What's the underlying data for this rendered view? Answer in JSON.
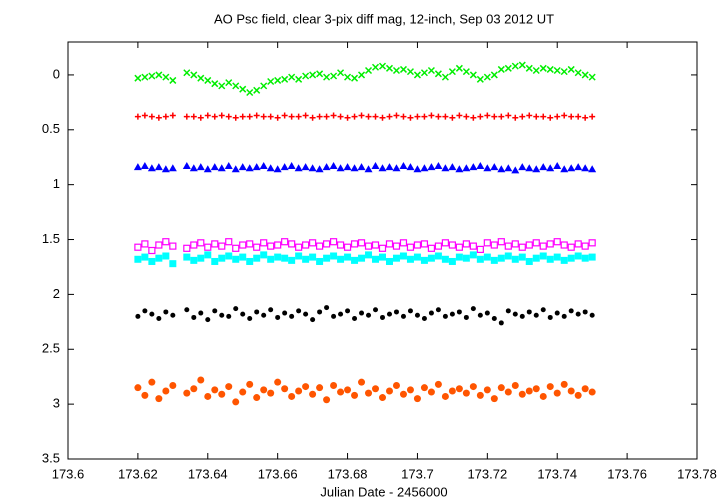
{
  "chart_data": {
    "type": "scatter",
    "title": "AO Psc field, clear 3-pix diff mag, 12-inch, Sep 03 2012 UT",
    "x_label": "Julian Date - 2456000",
    "xlim": [
      173.6,
      173.78
    ],
    "xticks": [
      173.6,
      173.62,
      173.64,
      173.66,
      173.68,
      173.7,
      173.72,
      173.74,
      173.76,
      173.78
    ],
    "ylim": [
      3.5,
      -0.3
    ],
    "yticks": [
      0,
      0.5,
      1,
      1.5,
      2,
      2.5,
      3,
      3.5
    ],
    "grid": false,
    "x": [
      173.62,
      173.622,
      173.624,
      173.626,
      173.628,
      173.63,
      173.634,
      173.636,
      173.638,
      173.64,
      173.642,
      173.644,
      173.646,
      173.648,
      173.65,
      173.652,
      173.654,
      173.656,
      173.658,
      173.66,
      173.662,
      173.664,
      173.666,
      173.668,
      173.67,
      173.672,
      173.674,
      173.676,
      173.678,
      173.68,
      173.682,
      173.684,
      173.686,
      173.688,
      173.69,
      173.692,
      173.694,
      173.696,
      173.698,
      173.7,
      173.702,
      173.704,
      173.706,
      173.708,
      173.71,
      173.712,
      173.714,
      173.716,
      173.718,
      173.72,
      173.722,
      173.724,
      173.726,
      173.728,
      173.73,
      173.732,
      173.734,
      173.736,
      173.738,
      173.74,
      173.742,
      173.744,
      173.746,
      173.748,
      173.75
    ],
    "series": [
      {
        "color": "#00ee00",
        "marker": "x",
        "values": [
          0.03,
          0.02,
          0.01,
          0.0,
          0.02,
          0.05,
          -0.02,
          0.0,
          0.03,
          0.05,
          0.08,
          0.1,
          0.07,
          0.1,
          0.13,
          0.16,
          0.14,
          0.1,
          0.06,
          0.05,
          0.04,
          0.02,
          0.04,
          0.01,
          0.0,
          -0.01,
          0.02,
          0.01,
          -0.02,
          0.02,
          0.03,
          0.0,
          -0.04,
          -0.07,
          -0.08,
          -0.06,
          -0.04,
          -0.05,
          -0.03,
          0.0,
          -0.02,
          -0.04,
          -0.01,
          0.02,
          -0.03,
          -0.06,
          -0.03,
          0.0,
          0.04,
          0.02,
          0.0,
          -0.05,
          -0.06,
          -0.08,
          -0.09,
          -0.06,
          -0.04,
          -0.06,
          -0.05,
          -0.04,
          -0.03,
          -0.05,
          -0.02,
          0.0,
          0.02
        ]
      },
      {
        "color": "#ff0000",
        "marker": "plus",
        "values": [
          0.38,
          0.37,
          0.38,
          0.39,
          0.38,
          0.37,
          0.38,
          0.38,
          0.39,
          0.37,
          0.38,
          0.37,
          0.38,
          0.39,
          0.38,
          0.38,
          0.37,
          0.38,
          0.38,
          0.39,
          0.37,
          0.38,
          0.38,
          0.37,
          0.39,
          0.38,
          0.38,
          0.37,
          0.38,
          0.39,
          0.38,
          0.37,
          0.38,
          0.38,
          0.39,
          0.38,
          0.37,
          0.38,
          0.39,
          0.38,
          0.38,
          0.37,
          0.38,
          0.38,
          0.39,
          0.37,
          0.38,
          0.39,
          0.38,
          0.37,
          0.38,
          0.38,
          0.37,
          0.39,
          0.38,
          0.37,
          0.38,
          0.38,
          0.39,
          0.38,
          0.37,
          0.38,
          0.38,
          0.39,
          0.38
        ]
      },
      {
        "color": "#0000ff",
        "marker": "triangle",
        "values": [
          0.84,
          0.83,
          0.85,
          0.84,
          0.86,
          0.85,
          0.83,
          0.85,
          0.84,
          0.86,
          0.84,
          0.85,
          0.83,
          0.86,
          0.84,
          0.85,
          0.84,
          0.83,
          0.85,
          0.86,
          0.84,
          0.83,
          0.85,
          0.84,
          0.85,
          0.86,
          0.84,
          0.83,
          0.85,
          0.84,
          0.85,
          0.84,
          0.86,
          0.83,
          0.85,
          0.84,
          0.85,
          0.83,
          0.84,
          0.86,
          0.85,
          0.84,
          0.83,
          0.85,
          0.84,
          0.86,
          0.85,
          0.84,
          0.83,
          0.85,
          0.84,
          0.86,
          0.85,
          0.87,
          0.84,
          0.85,
          0.86,
          0.84,
          0.85,
          0.83,
          0.86,
          0.85,
          0.84,
          0.85,
          0.86
        ]
      },
      {
        "color": "#ff00ff",
        "marker": "open-square",
        "values": [
          1.57,
          1.54,
          1.6,
          1.55,
          1.52,
          1.56,
          1.58,
          1.55,
          1.53,
          1.57,
          1.54,
          1.56,
          1.52,
          1.58,
          1.55,
          1.54,
          1.57,
          1.53,
          1.56,
          1.55,
          1.52,
          1.54,
          1.57,
          1.55,
          1.53,
          1.56,
          1.54,
          1.52,
          1.55,
          1.57,
          1.54,
          1.53,
          1.56,
          1.55,
          1.58,
          1.54,
          1.56,
          1.53,
          1.57,
          1.55,
          1.54,
          1.58,
          1.56,
          1.53,
          1.55,
          1.57,
          1.54,
          1.56,
          1.59,
          1.53,
          1.55,
          1.52,
          1.56,
          1.54,
          1.57,
          1.55,
          1.53,
          1.56,
          1.54,
          1.52,
          1.55,
          1.57,
          1.54,
          1.56,
          1.53
        ]
      },
      {
        "color": "#00ffff",
        "marker": "square",
        "values": [
          1.68,
          1.66,
          1.7,
          1.67,
          1.65,
          1.72,
          1.66,
          1.69,
          1.67,
          1.64,
          1.7,
          1.67,
          1.65,
          1.68,
          1.66,
          1.7,
          1.67,
          1.64,
          1.68,
          1.66,
          1.67,
          1.69,
          1.65,
          1.68,
          1.66,
          1.7,
          1.67,
          1.65,
          1.68,
          1.66,
          1.69,
          1.67,
          1.64,
          1.68,
          1.66,
          1.7,
          1.67,
          1.65,
          1.68,
          1.66,
          1.69,
          1.67,
          1.65,
          1.68,
          1.7,
          1.66,
          1.67,
          1.64,
          1.68,
          1.66,
          1.69,
          1.67,
          1.65,
          1.68,
          1.66,
          1.7,
          1.67,
          1.65,
          1.68,
          1.66,
          1.69,
          1.67,
          1.65,
          1.67,
          1.66
        ]
      },
      {
        "color": "#000000",
        "marker": "dot",
        "values": [
          2.2,
          2.15,
          2.18,
          2.22,
          2.16,
          2.19,
          2.14,
          2.21,
          2.17,
          2.23,
          2.15,
          2.19,
          2.2,
          2.13,
          2.18,
          2.22,
          2.16,
          2.19,
          2.14,
          2.21,
          2.17,
          2.2,
          2.15,
          2.18,
          2.23,
          2.16,
          2.12,
          2.2,
          2.18,
          2.15,
          2.22,
          2.17,
          2.19,
          2.14,
          2.21,
          2.18,
          2.16,
          2.2,
          2.15,
          2.19,
          2.22,
          2.17,
          2.14,
          2.2,
          2.18,
          2.16,
          2.21,
          2.13,
          2.19,
          2.17,
          2.22,
          2.26,
          2.15,
          2.18,
          2.2,
          2.16,
          2.19,
          2.14,
          2.21,
          2.17,
          2.2,
          2.15,
          2.18,
          2.16,
          2.19
        ]
      },
      {
        "color": "#ff5500",
        "marker": "circle",
        "values": [
          2.85,
          2.92,
          2.8,
          2.95,
          2.88,
          2.83,
          2.9,
          2.86,
          2.78,
          2.93,
          2.87,
          2.91,
          2.84,
          2.98,
          2.89,
          2.82,
          2.94,
          2.87,
          2.9,
          2.8,
          2.86,
          2.93,
          2.88,
          2.84,
          2.91,
          2.85,
          2.96,
          2.83,
          2.89,
          2.87,
          2.92,
          2.8,
          2.9,
          2.86,
          2.94,
          2.88,
          2.83,
          2.91,
          2.87,
          2.95,
          2.85,
          2.89,
          2.82,
          2.93,
          2.88,
          2.86,
          2.9,
          2.84,
          2.92,
          2.87,
          2.95,
          2.85,
          2.89,
          2.83,
          2.91,
          2.88,
          2.86,
          2.93,
          2.84,
          2.9,
          2.82,
          2.88,
          2.92,
          2.86,
          2.89
        ]
      }
    ]
  }
}
